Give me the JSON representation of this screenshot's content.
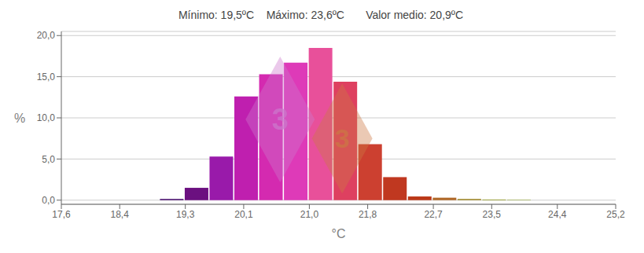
{
  "chart_data": {
    "type": "bar",
    "title": "Mínimo: 19,5ºC    Máximo: 23,6ºC       Valor medio: 20,9ºC",
    "x_label": "°C",
    "y_label": "%",
    "x": [
      19.115,
      19.455,
      19.795,
      20.135,
      20.475,
      20.815,
      21.155,
      21.495,
      21.835,
      22.175,
      22.515,
      22.855,
      23.195,
      23.535,
      23.875
    ],
    "values": [
      0.15,
      1.5,
      5.3,
      12.6,
      15.3,
      16.7,
      18.5,
      14.4,
      6.8,
      2.8,
      0.45,
      0.3,
      0.15,
      0.08,
      0.05
    ],
    "colors": [
      "#4a1070",
      "#6b1080",
      "#991aaa",
      "#bf1faf",
      "#d42ab0",
      "#de3ab8",
      "#e8509a",
      "#de4060",
      "#cc4030",
      "#c03820",
      "#bb3818",
      "#b06828",
      "#a08828",
      "#909820",
      "#88a020"
    ],
    "xlim": [
      17.6,
      25.2
    ],
    "ylim": [
      -0.5,
      20.5
    ],
    "xticks": [
      {
        "value": 17.6,
        "label": "17,6"
      },
      {
        "value": 18.4,
        "label": "18,4"
      },
      {
        "value": 19.3,
        "label": "19,3"
      },
      {
        "value": 20.1,
        "label": "20,1"
      },
      {
        "value": 21.0,
        "label": "21,0"
      },
      {
        "value": 21.8,
        "label": "21,8"
      },
      {
        "value": 22.7,
        "label": "22,7"
      },
      {
        "value": 23.5,
        "label": "23,5"
      },
      {
        "value": 24.4,
        "label": "24,4"
      },
      {
        "value": 25.2,
        "label": "25,2"
      }
    ],
    "yticks": [
      {
        "value": 0.0,
        "label": "0,0"
      },
      {
        "value": 5.0,
        "label": "5,0"
      },
      {
        "value": 10.0,
        "label": "10,0"
      },
      {
        "value": 15.0,
        "label": "15,0"
      },
      {
        "value": 20.0,
        "label": "20,0"
      }
    ],
    "grid": true,
    "annotations": [
      {
        "text": "3",
        "x": 20.6,
        "y": 9.8,
        "color": "#cc77cc"
      },
      {
        "text": "3",
        "x": 21.45,
        "y": 7.5,
        "color": "#cc7744"
      }
    ]
  }
}
